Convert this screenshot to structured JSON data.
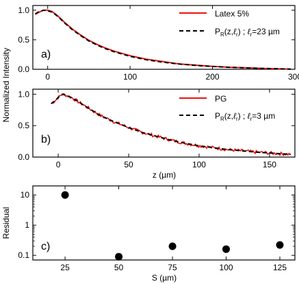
{
  "chart_data": [
    {
      "type": "line",
      "panel_label": "a)",
      "ylabel": "Normalized Intensity",
      "xlim": [
        -18,
        300
      ],
      "ylim": [
        0,
        1.08
      ],
      "xticks": [
        0,
        100,
        200,
        300
      ],
      "xtick_labels": [
        "0",
        "100",
        "200",
        "300"
      ],
      "yticks": [
        0.0,
        0.5,
        1.0
      ],
      "ytick_labels": [
        "0.0",
        "0.5",
        "1.0"
      ],
      "legend_position": "top-right",
      "series": [
        {
          "name": "Latex 5%",
          "color": "#ee1111",
          "style": "solid",
          "x": [
            -15,
            -10,
            -5,
            0,
            5,
            10,
            15,
            20,
            30,
            40,
            50,
            60,
            70,
            80,
            100,
            120,
            140,
            160,
            180,
            200,
            220,
            240,
            260,
            280,
            295
          ],
          "y": [
            0.93,
            0.97,
            1.0,
            1.0,
            0.98,
            0.93,
            0.87,
            0.8,
            0.68,
            0.58,
            0.49,
            0.42,
            0.36,
            0.31,
            0.23,
            0.17,
            0.13,
            0.09,
            0.07,
            0.05,
            0.035,
            0.025,
            0.015,
            0.008,
            0.004
          ]
        },
        {
          "name": "P_R(z,ℓ_r) ; ℓ_r=23 µm",
          "legend_text": "P",
          "legend_sub_R": "R",
          "legend_mid": "(z,",
          "legend_ell": "ℓ",
          "legend_sub_r": "r",
          "legend_close": ") ; ",
          "legend_ell2": "ℓ",
          "legend_sub_r2": "r",
          "legend_val": "=23 µm",
          "color": "#000000",
          "style": "dashed",
          "x": [
            -15,
            -10,
            -5,
            0,
            5,
            10,
            15,
            20,
            30,
            40,
            50,
            60,
            70,
            80,
            100,
            120,
            140,
            160,
            180,
            200,
            220,
            240,
            260,
            280,
            295
          ],
          "y": [
            0.94,
            0.98,
            1.0,
            0.99,
            0.97,
            0.92,
            0.86,
            0.79,
            0.67,
            0.57,
            0.48,
            0.41,
            0.35,
            0.3,
            0.22,
            0.16,
            0.12,
            0.088,
            0.065,
            0.048,
            0.034,
            0.024,
            0.015,
            0.008,
            0.004
          ]
        }
      ]
    },
    {
      "type": "line",
      "panel_label": "b)",
      "xlabel": "z (µm)",
      "xlim": [
        -18,
        168
      ],
      "ylim": [
        0,
        1.08
      ],
      "xticks": [
        0,
        50,
        100,
        150
      ],
      "xtick_labels": [
        "0",
        "50",
        "100",
        "150"
      ],
      "yticks": [
        0.0,
        0.5,
        1.0
      ],
      "ytick_labels": [
        "0.0",
        "0.5",
        "1.0"
      ],
      "legend_position": "top-right",
      "series": [
        {
          "name": "PG",
          "color": "#ee1111",
          "style": "solid",
          "x_start": -5,
          "x_end": 165,
          "noise": 0.025
        },
        {
          "name": "P_R(z,ℓ_r) ; ℓ_r=3 µm",
          "legend_val": "=3 µm",
          "color": "#000000",
          "style": "dashed",
          "x": [
            -5,
            -2,
            0,
            3,
            6,
            10,
            15,
            20,
            25,
            30,
            40,
            50,
            60,
            70,
            80,
            90,
            100,
            110,
            120,
            130,
            140,
            150,
            160,
            165
          ],
          "y": [
            0.85,
            0.9,
            0.95,
            1.0,
            0.98,
            0.94,
            0.87,
            0.8,
            0.73,
            0.66,
            0.56,
            0.47,
            0.39,
            0.33,
            0.27,
            0.22,
            0.18,
            0.15,
            0.12,
            0.1,
            0.08,
            0.065,
            0.05,
            0.045
          ]
        }
      ]
    },
    {
      "type": "scatter",
      "panel_label": "c)",
      "xlabel": "S (µm)",
      "ylabel": "Residual",
      "xlim": [
        10,
        132
      ],
      "ylim": [
        0.07,
        20
      ],
      "yscale": "log",
      "xticks": [
        25,
        50,
        75,
        100,
        125
      ],
      "xtick_labels": [
        "25",
        "50",
        "75",
        "100",
        "125"
      ],
      "yticks": [
        0.1,
        1,
        10
      ],
      "ytick_labels": [
        "0.1",
        "1",
        "10"
      ],
      "x": [
        25,
        50,
        75,
        100,
        125
      ],
      "y": [
        10,
        0.09,
        0.2,
        0.16,
        0.22
      ]
    }
  ]
}
